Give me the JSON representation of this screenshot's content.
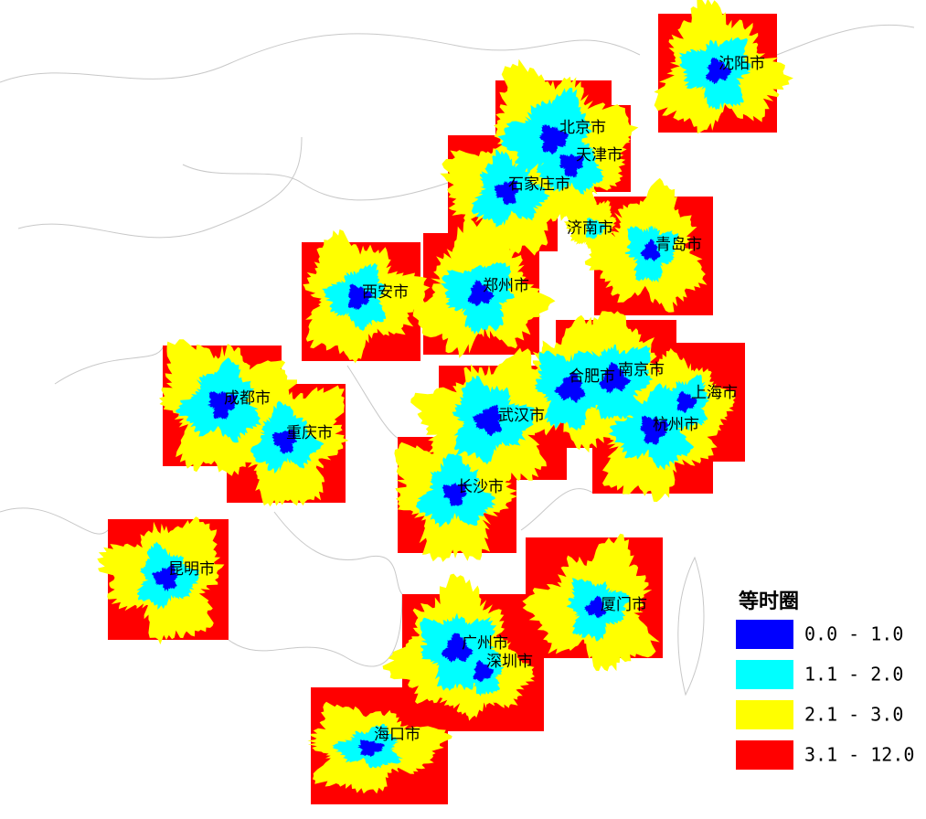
{
  "map": {
    "cities": [
      "沈阳市",
      "北京市",
      "天津市",
      "石家庄市",
      "济南市",
      "青岛市",
      "郑州市",
      "西安市",
      "成都市",
      "重庆市",
      "武汉市",
      "合肥市",
      "南京市",
      "上海市",
      "杭州市",
      "长沙市",
      "昆明市",
      "厦门市",
      "广州市",
      "深圳市",
      "海口市"
    ],
    "legend": {
      "title": "等时圈",
      "items": [
        {
          "label": "0.0 - 1.0",
          "color": "#0000ff"
        },
        {
          "label": "1.1 - 2.0",
          "color": "#00ffff"
        },
        {
          "label": "2.1 - 3.0",
          "color": "#ffff00"
        },
        {
          "label": "3.1 - 12.0",
          "color": "#ff0000"
        }
      ]
    }
  }
}
